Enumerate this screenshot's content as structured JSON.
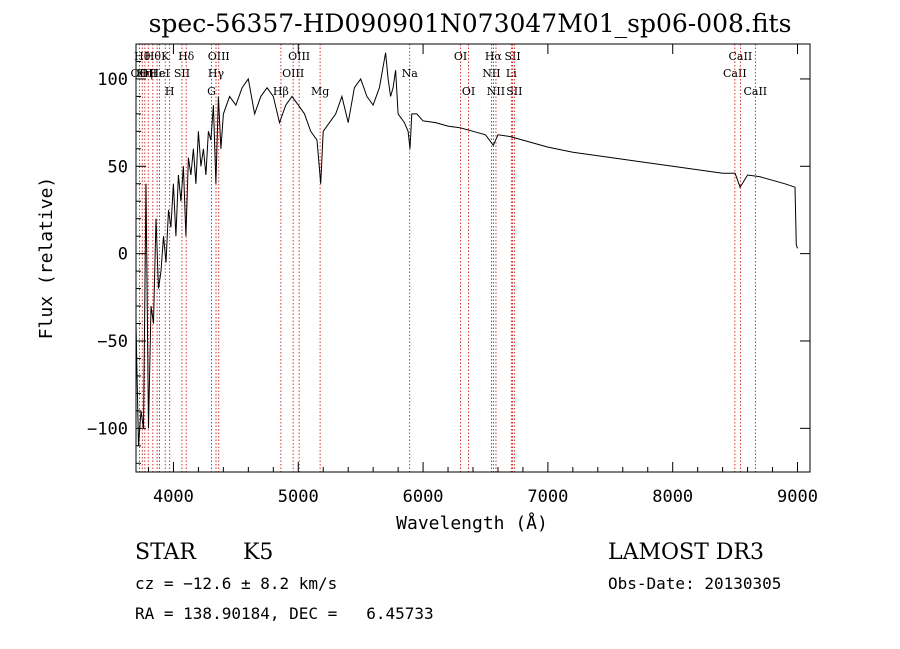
{
  "chart_data": {
    "type": "line",
    "title": "spec-56357-HD090901N073047M01_sp06-008.fits",
    "xlabel": "Wavelength (Å)",
    "ylabel": "Flux (relative)",
    "xlim": [
      3700,
      9100
    ],
    "ylim": [
      -125,
      120
    ],
    "xticks": [
      4000,
      5000,
      6000,
      7000,
      8000,
      9000
    ],
    "xtick_labels": [
      "4000",
      "5000",
      "6000",
      "7000",
      "8000",
      "9000"
    ],
    "yticks": [
      -100,
      -50,
      0,
      50,
      100
    ],
    "ytick_labels": [
      "−100",
      "−50",
      "0",
      "50",
      "100"
    ],
    "series": [
      {
        "name": "spectrum",
        "x": [
          3700,
          3720,
          3740,
          3760,
          3780,
          3800,
          3820,
          3840,
          3860,
          3880,
          3900,
          3920,
          3940,
          3960,
          3980,
          4000,
          4020,
          4040,
          4060,
          4080,
          4100,
          4120,
          4140,
          4160,
          4180,
          4200,
          4220,
          4240,
          4260,
          4280,
          4300,
          4320,
          4340,
          4360,
          4380,
          4400,
          4450,
          4500,
          4550,
          4600,
          4650,
          4700,
          4750,
          4800,
          4850,
          4900,
          4950,
          5000,
          5050,
          5100,
          5150,
          5180,
          5200,
          5250,
          5300,
          5350,
          5400,
          5450,
          5500,
          5550,
          5600,
          5650,
          5700,
          5720,
          5740,
          5760,
          5780,
          5800,
          5850,
          5880,
          5895,
          5910,
          5950,
          6000,
          6100,
          6200,
          6300,
          6400,
          6500,
          6563,
          6600,
          6700,
          6800,
          6900,
          7000,
          7200,
          7400,
          7600,
          7800,
          8000,
          8200,
          8400,
          8500,
          8540,
          8600,
          8700,
          8800,
          8900,
          8980,
          8990,
          9000
        ],
        "y": [
          -40,
          -110,
          -90,
          -100,
          40,
          -100,
          -30,
          -40,
          20,
          -20,
          -10,
          10,
          -5,
          25,
          15,
          40,
          10,
          45,
          30,
          50,
          10,
          55,
          45,
          60,
          40,
          70,
          50,
          60,
          45,
          70,
          65,
          85,
          40,
          90,
          60,
          80,
          90,
          85,
          95,
          100,
          80,
          90,
          95,
          90,
          75,
          85,
          90,
          85,
          80,
          70,
          65,
          40,
          70,
          75,
          80,
          90,
          75,
          95,
          100,
          90,
          85,
          95,
          115,
          100,
          90,
          95,
          105,
          80,
          75,
          70,
          60,
          80,
          80,
          76,
          75,
          73,
          72,
          70,
          68,
          62,
          68,
          67,
          65,
          63,
          61,
          58,
          56,
          54,
          52,
          50,
          48,
          46,
          46,
          38,
          45,
          44,
          42,
          40,
          38,
          5,
          3
        ]
      }
    ],
    "lines": [
      {
        "w": 3727,
        "name": "OII",
        "row": 2
      },
      {
        "w": 3750,
        "name": "Hθ",
        "row": 1
      },
      {
        "w": 3771,
        "name": "Hη",
        "row": 2
      },
      {
        "w": 3798,
        "name": "OII",
        "row": 2
      },
      {
        "w": 3835,
        "name": "Hθ",
        "row": 1
      },
      {
        "w": 3869,
        "name": "Hε",
        "row": 2
      },
      {
        "w": 3889,
        "name": "HeI",
        "row": 2
      },
      {
        "w": 3934,
        "name": "K",
        "row": 1
      },
      {
        "w": 3970,
        "name": "H",
        "row": 3
      },
      {
        "w": 4068,
        "name": "SII",
        "row": 2
      },
      {
        "w": 4102,
        "name": "Hδ",
        "row": 1
      },
      {
        "w": 4305,
        "name": "G",
        "row": 3
      },
      {
        "w": 4341,
        "name": "Hγ",
        "row": 2
      },
      {
        "w": 4363,
        "name": "OIII",
        "row": 1
      },
      {
        "w": 4861,
        "name": "Hβ",
        "row": 3
      },
      {
        "w": 4959,
        "name": "OIII",
        "row": 2
      },
      {
        "w": 5007,
        "name": "OIII",
        "row": 1
      },
      {
        "w": 5175,
        "name": "Mg",
        "row": 3
      },
      {
        "w": 5893,
        "name": "Na",
        "row": 2
      },
      {
        "w": 6300,
        "name": "OI",
        "row": 1
      },
      {
        "w": 6364,
        "name": "OI",
        "row": 3
      },
      {
        "w": 6548,
        "name": "NII",
        "row": 2
      },
      {
        "w": 6563,
        "name": "Hα",
        "row": 1
      },
      {
        "w": 6584,
        "name": "NII",
        "row": 3
      },
      {
        "w": 6707,
        "name": "Li",
        "row": 2
      },
      {
        "w": 6717,
        "name": "SII",
        "row": 1
      },
      {
        "w": 6731,
        "name": "SII",
        "row": 3
      },
      {
        "w": 8498,
        "name": "CaII",
        "row": 2
      },
      {
        "w": 8542,
        "name": "CaII",
        "row": 1
      },
      {
        "w": 8662,
        "name": "CaII",
        "row": 3
      }
    ]
  },
  "info": {
    "object_type": "STAR",
    "subclass": "K5",
    "redshift": "cz = −12.6 ± 8.2 km/s",
    "coords": "RA = 138.90184, DEC =   6.45733",
    "survey": "LAMOST DR3",
    "obs_date": "Obs-Date: 20130305"
  }
}
